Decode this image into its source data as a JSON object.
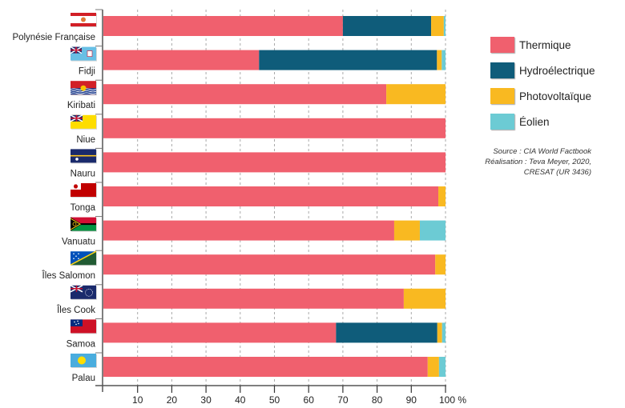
{
  "chart_data": {
    "type": "bar",
    "orientation": "horizontal",
    "stacked": true,
    "categories": [
      "Polynésie Française",
      "Fidji",
      "Kiribati",
      "Niue",
      "Nauru",
      "Tonga",
      "Vanuatu",
      "Îles Salomon",
      "Îles Cook",
      "Samoa",
      "Palau"
    ],
    "series": [
      {
        "name": "Thermique",
        "color": "#f0606e",
        "values": [
          70,
          45.5,
          82.7,
          100,
          100,
          97.9,
          85,
          97,
          87.8,
          68,
          94.8
        ]
      },
      {
        "name": "Hydroélectrique",
        "color": "#0f5c7a",
        "values": [
          25.8,
          52,
          0,
          0,
          0,
          0,
          0,
          0,
          0,
          29.6,
          0
        ]
      },
      {
        "name": "Photovoltaïque",
        "color": "#f9b921",
        "values": [
          3.7,
          1.4,
          17.3,
          0,
          0,
          2.1,
          7.5,
          3,
          12.2,
          1.4,
          3.3
        ]
      },
      {
        "name": "Éolien",
        "color": "#6ccbd4",
        "values": [
          0.5,
          1.1,
          0,
          0,
          0,
          0,
          7.5,
          0,
          0,
          1,
          1.9
        ]
      }
    ],
    "xlim": [
      0,
      100
    ],
    "xticks": [
      "10",
      "20",
      "30",
      "40",
      "50",
      "60",
      "70",
      "80",
      "90",
      "100 %"
    ],
    "xtick_values": [
      10,
      20,
      30,
      40,
      50,
      60,
      70,
      80,
      90,
      100
    ],
    "grid": "vertical-dashed",
    "legend": "right",
    "title": "",
    "xlabel": "",
    "ylabel": ""
  },
  "legend": {
    "items": [
      "Thermique",
      "Hydroélectrique",
      "Photovoltaïque",
      "Éolien"
    ]
  },
  "source": {
    "line1": "Source : CIA World Factbook",
    "line2": "Réalisation : Teva Meyer, 2020,",
    "line3": "CRESAT (UR 3436)"
  },
  "flags": [
    "french-polynesia-flag",
    "fiji-flag",
    "kiribati-flag",
    "niue-flag",
    "nauru-flag",
    "tonga-flag",
    "vanuatu-flag",
    "solomon-islands-flag",
    "cook-islands-flag",
    "samoa-flag",
    "palau-flag"
  ]
}
